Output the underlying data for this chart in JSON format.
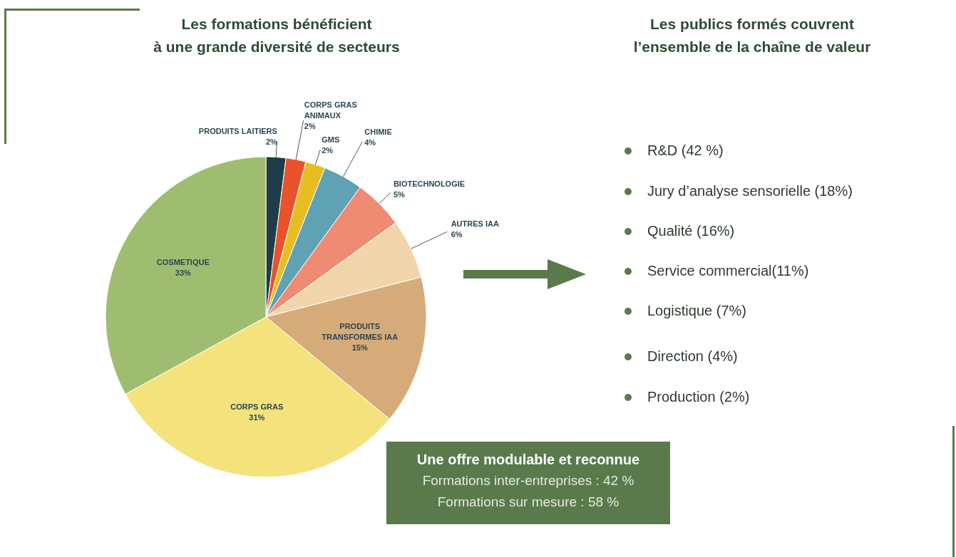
{
  "chart_data": [
    {
      "type": "pie",
      "title": "Les formations bénéficient\nà une grande diversité de secteurs",
      "categories": [
        "PRODUITS LAITIERS",
        "CORPS GRAS ANIMAUX",
        "GMS",
        "CHIMIE",
        "BIOTECHNOLOGIE",
        "AUTRES IAA",
        "PRODUITS TRANSFORMES IAA",
        "CORPS GRAS",
        "COSMETIQUE"
      ],
      "values": [
        2,
        2,
        2,
        4,
        5,
        6,
        15,
        31,
        33
      ],
      "value_labels": [
        "2%",
        "2%",
        "2%",
        "4%",
        "5%",
        "6%",
        "15%",
        "31%",
        "33%"
      ],
      "colors": [
        "#1f3d48",
        "#e8532b",
        "#e6be22",
        "#5fa2b4",
        "#ef8a73",
        "#f1d6ab",
        "#d6ab7a",
        "#f4e27c",
        "#9fbd70"
      ]
    },
    {
      "type": "other",
      "title": "Les publics formés couvrent\nl’ensemble de la chaîne de valeur",
      "annotations": [
        "R&D (42 %)",
        "Jury d’analyse sensorielle (18%)",
        "Qualité (16%)",
        "Service commercial(11%)",
        "Logistique (7%)",
        "Direction (4%)",
        "Production (2%)"
      ]
    },
    {
      "type": "other",
      "title": "Une offre modulable et reconnue",
      "annotations": [
        "Formations inter-entreprises : 42 %",
        "Formations sur mesure : 58 %"
      ]
    }
  ]
}
